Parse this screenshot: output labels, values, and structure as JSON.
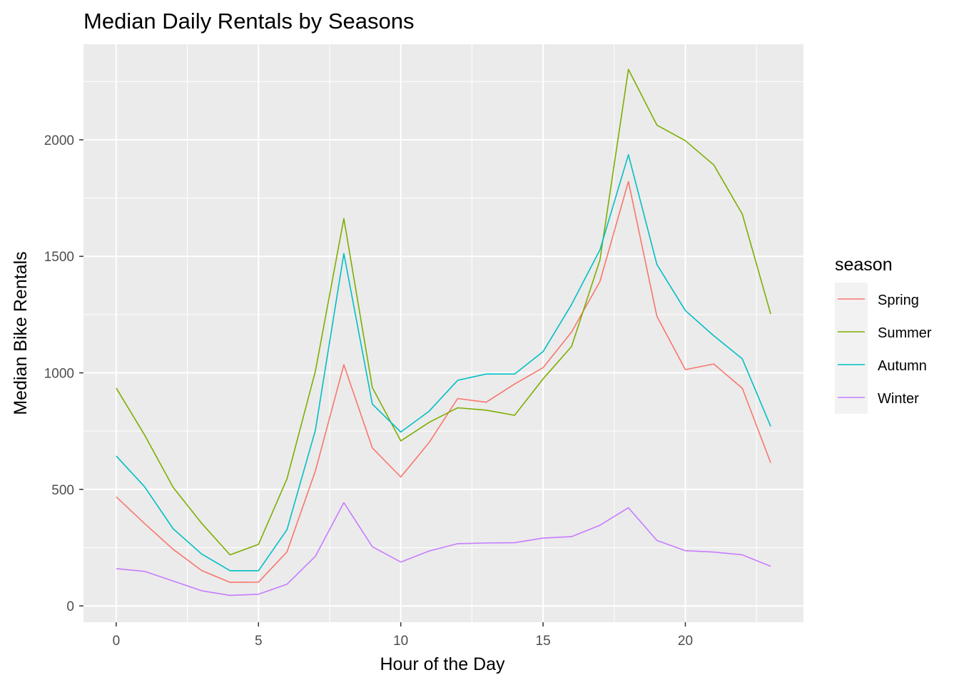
{
  "chart_data": {
    "type": "line",
    "title": "Median Daily Rentals by Seasons",
    "xlabel": "Hour of the Day",
    "ylabel": "Median Bike Rentals",
    "xlim": [
      -1.15,
      24.15
    ],
    "ylim": [
      -70,
      2410
    ],
    "x_ticks": [
      0,
      5,
      10,
      15,
      20
    ],
    "x_minor": [
      2.5,
      7.5,
      12.5,
      17.5,
      22.5
    ],
    "y_ticks": [
      0,
      500,
      1000,
      1500,
      2000
    ],
    "y_minor": [
      250,
      750,
      1250,
      1750,
      2250
    ],
    "grid": true,
    "legend": {
      "title": "season",
      "position": "right"
    },
    "x": [
      0,
      1,
      2,
      3,
      4,
      5,
      6,
      7,
      8,
      9,
      10,
      11,
      12,
      13,
      14,
      15,
      16,
      17,
      18,
      19,
      20,
      21,
      22,
      23
    ],
    "series": [
      {
        "name": "Spring",
        "color": "#F8766D",
        "values": [
          468,
          353,
          243,
          152,
          101,
          102,
          232,
          579,
          1035,
          678,
          553,
          702,
          890,
          874,
          952,
          1022,
          1175,
          1392,
          1821,
          1243,
          1014,
          1038,
          934,
          614
        ]
      },
      {
        "name": "Summer",
        "color": "#7CAE00",
        "values": [
          935,
          733,
          509,
          355,
          219,
          264,
          545,
          1007,
          1662,
          937,
          708,
          788,
          850,
          840,
          818,
          974,
          1113,
          1484,
          2302,
          2063,
          1996,
          1892,
          1681,
          1252
        ]
      },
      {
        "name": "Autumn",
        "color": "#00BFC4",
        "values": [
          643,
          511,
          331,
          223,
          151,
          151,
          327,
          754,
          1512,
          866,
          746,
          836,
          968,
          995,
          995,
          1091,
          1293,
          1528,
          1936,
          1465,
          1267,
          1159,
          1060,
          770
        ]
      },
      {
        "name": "Winter",
        "color": "#C77CFF",
        "values": [
          160,
          148,
          107,
          65,
          45,
          50,
          93,
          213,
          443,
          254,
          188,
          236,
          267,
          270,
          271,
          291,
          297,
          346,
          421,
          281,
          237,
          231,
          219,
          170
        ]
      }
    ]
  }
}
